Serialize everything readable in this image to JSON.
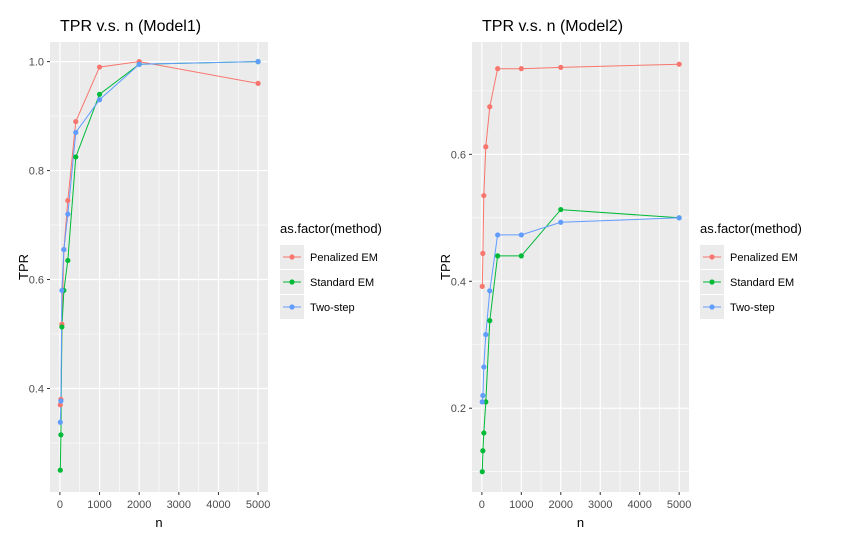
{
  "legend": {
    "title": "as.factor(method)",
    "entries": [
      {
        "label": "Penalized EM",
        "color": "#F8766D"
      },
      {
        "label": "Standard EM",
        "color": "#00BA38"
      },
      {
        "label": "Two-step",
        "color": "#619CFF"
      }
    ]
  },
  "colors": {
    "panel_background": "#EBEBEB",
    "grid": "#FFFFFF",
    "axis_text": "#4D4D4D",
    "text": "#000000"
  },
  "chart_data": [
    {
      "type": "line",
      "title": "TPR v.s. n (Model1)",
      "xlabel": "n",
      "ylabel": "TPR",
      "xlim": [
        -250,
        5250
      ],
      "ylim": [
        0.21,
        1.036
      ],
      "xticks": [
        0,
        1000,
        2000,
        3000,
        4000,
        5000
      ],
      "xtick_labels": [
        "0",
        "1000",
        "2000",
        "3000",
        "4000",
        "5000"
      ],
      "yticks": [
        0.4,
        0.6,
        0.8,
        1.0
      ],
      "ytick_labels": [
        "0.4",
        "0.6",
        "0.8",
        "1.0"
      ],
      "grid": true,
      "legend_position": "right",
      "x": [
        10,
        25,
        50,
        100,
        200,
        400,
        1000,
        2000,
        5000
      ],
      "series": [
        {
          "name": "Penalized EM",
          "color": "#F8766D",
          "values": [
            0.37,
            0.38,
            0.518,
            0.655,
            0.745,
            0.89,
            0.99,
            1.0,
            0.96
          ]
        },
        {
          "name": "Standard EM",
          "color": "#00BA38",
          "values": [
            0.25,
            0.315,
            0.513,
            0.58,
            0.635,
            0.825,
            0.94,
            0.995,
            1.0
          ]
        },
        {
          "name": "Two-step",
          "color": "#619CFF",
          "values": [
            0.338,
            0.377,
            0.58,
            0.655,
            0.72,
            0.87,
            0.93,
            0.995,
            1.0
          ]
        }
      ]
    },
    {
      "type": "line",
      "title": "TPR v.s. n (Model2)",
      "xlabel": "n",
      "ylabel": "TPR",
      "xlim": [
        -250,
        5250
      ],
      "ylim": [
        0.068,
        0.777
      ],
      "xticks": [
        0,
        1000,
        2000,
        3000,
        4000,
        5000
      ],
      "xtick_labels": [
        "0",
        "1000",
        "2000",
        "3000",
        "4000",
        "5000"
      ],
      "yticks": [
        0.2,
        0.4,
        0.6
      ],
      "ytick_labels": [
        "0.2",
        "0.4",
        "0.6"
      ],
      "grid": true,
      "legend_position": "right",
      "x": [
        10,
        25,
        50,
        100,
        200,
        400,
        1000,
        2000,
        5000
      ],
      "series": [
        {
          "name": "Penalized EM",
          "color": "#F8766D",
          "values": [
            0.392,
            0.444,
            0.535,
            0.612,
            0.675,
            0.735,
            0.735,
            0.737,
            0.742
          ]
        },
        {
          "name": "Standard EM",
          "color": "#00BA38",
          "values": [
            0.1,
            0.133,
            0.161,
            0.21,
            0.338,
            0.44,
            0.44,
            0.513,
            0.5
          ]
        },
        {
          "name": "Two-step",
          "color": "#619CFF",
          "values": [
            0.21,
            0.22,
            0.265,
            0.316,
            0.385,
            0.473,
            0.473,
            0.493,
            0.5
          ]
        }
      ]
    }
  ]
}
